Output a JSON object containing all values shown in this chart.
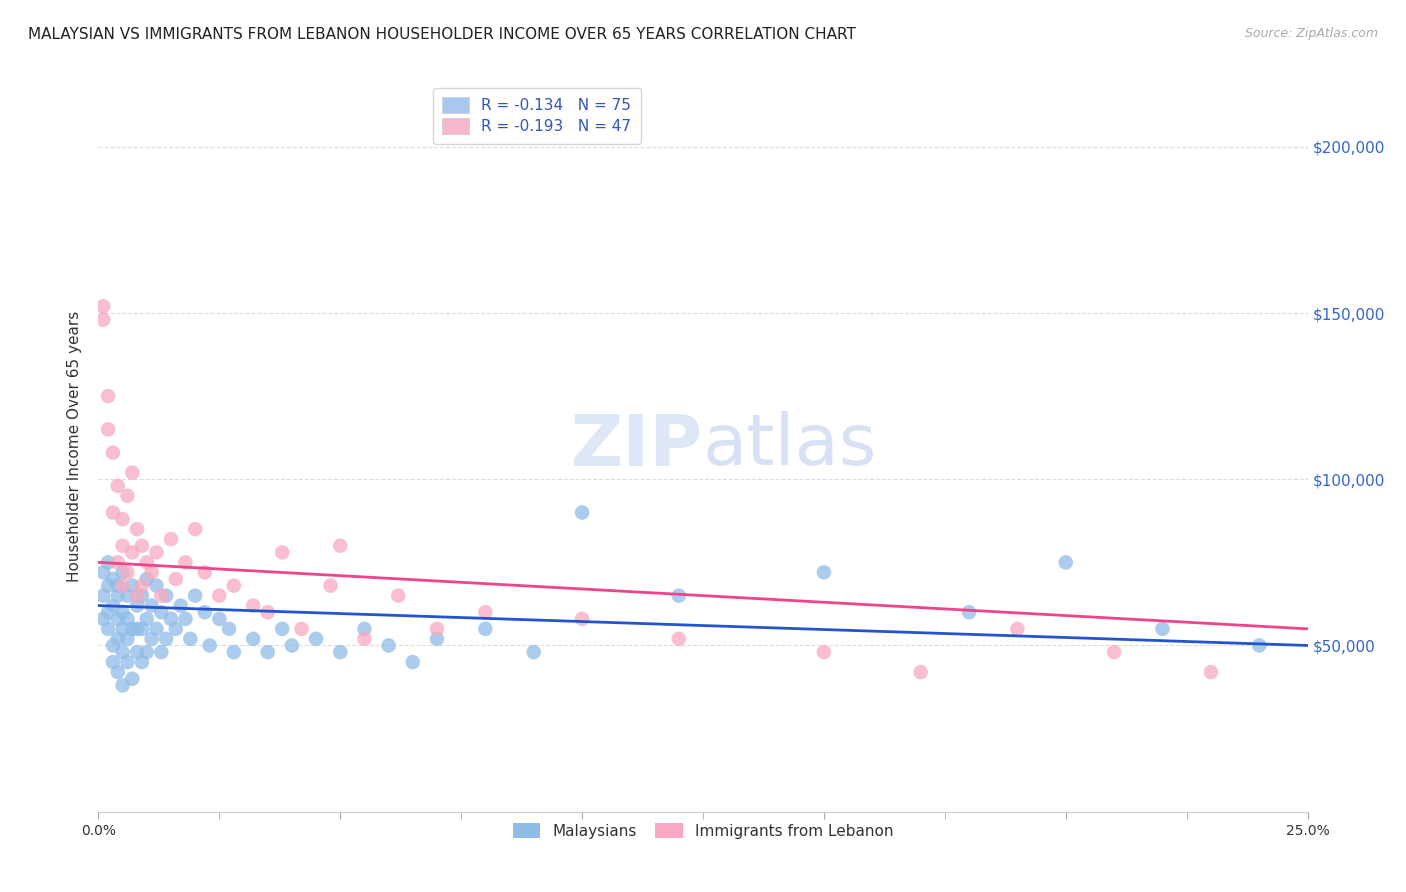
{
  "title": "MALAYSIAN VS IMMIGRANTS FROM LEBANON HOUSEHOLDER INCOME OVER 65 YEARS CORRELATION CHART",
  "source": "Source: ZipAtlas.com",
  "ylabel": "Householder Income Over 65 years",
  "legend_entries": [
    {
      "label": "R = -0.134   N = 75",
      "color": "#a8c8f0"
    },
    {
      "label": "R = -0.193   N = 47",
      "color": "#f8b8cc"
    }
  ],
  "legend_corr_color": "#3355bb",
  "ytick_labels": [
    "$50,000",
    "$100,000",
    "$150,000",
    "$200,000"
  ],
  "ytick_values": [
    50000,
    100000,
    150000,
    200000
  ],
  "ytick_color": "#3366cc",
  "watermark": "ZIPatlas",
  "blue_scatter_color": "#90bce8",
  "pink_scatter_color": "#f8a8c0",
  "blue_line_color": "#2255cc",
  "pink_line_color": "#ee4488",
  "background_color": "#ffffff",
  "grid_color": "#dddddd",
  "xlim": [
    0.0,
    0.25
  ],
  "ylim": [
    0,
    220000
  ],
  "malaysians_x": [
    0.001,
    0.001,
    0.001,
    0.002,
    0.002,
    0.002,
    0.002,
    0.003,
    0.003,
    0.003,
    0.003,
    0.004,
    0.004,
    0.004,
    0.004,
    0.004,
    0.005,
    0.005,
    0.005,
    0.005,
    0.005,
    0.006,
    0.006,
    0.006,
    0.006,
    0.007,
    0.007,
    0.007,
    0.008,
    0.008,
    0.008,
    0.009,
    0.009,
    0.009,
    0.01,
    0.01,
    0.01,
    0.011,
    0.011,
    0.012,
    0.012,
    0.013,
    0.013,
    0.014,
    0.014,
    0.015,
    0.016,
    0.017,
    0.018,
    0.019,
    0.02,
    0.022,
    0.023,
    0.025,
    0.027,
    0.028,
    0.032,
    0.035,
    0.038,
    0.04,
    0.045,
    0.05,
    0.055,
    0.06,
    0.065,
    0.07,
    0.08,
    0.09,
    0.1,
    0.12,
    0.15,
    0.18,
    0.2,
    0.22,
    0.24
  ],
  "malaysians_y": [
    65000,
    72000,
    58000,
    68000,
    60000,
    55000,
    75000,
    62000,
    70000,
    50000,
    45000,
    65000,
    58000,
    52000,
    68000,
    42000,
    72000,
    60000,
    55000,
    48000,
    38000,
    65000,
    58000,
    52000,
    45000,
    68000,
    55000,
    40000,
    62000,
    55000,
    48000,
    65000,
    55000,
    45000,
    70000,
    58000,
    48000,
    62000,
    52000,
    68000,
    55000,
    60000,
    48000,
    65000,
    52000,
    58000,
    55000,
    62000,
    58000,
    52000,
    65000,
    60000,
    50000,
    58000,
    55000,
    48000,
    52000,
    48000,
    55000,
    50000,
    52000,
    48000,
    55000,
    50000,
    45000,
    52000,
    55000,
    48000,
    90000,
    65000,
    72000,
    60000,
    75000,
    55000,
    50000
  ],
  "lebanon_x": [
    0.001,
    0.001,
    0.002,
    0.002,
    0.003,
    0.003,
    0.004,
    0.004,
    0.005,
    0.005,
    0.005,
    0.006,
    0.006,
    0.007,
    0.007,
    0.008,
    0.008,
    0.009,
    0.009,
    0.01,
    0.011,
    0.012,
    0.013,
    0.015,
    0.016,
    0.018,
    0.02,
    0.022,
    0.025,
    0.028,
    0.032,
    0.035,
    0.038,
    0.042,
    0.048,
    0.055,
    0.062,
    0.07,
    0.08,
    0.1,
    0.12,
    0.15,
    0.17,
    0.05,
    0.19,
    0.21,
    0.23
  ],
  "lebanon_y": [
    152000,
    148000,
    115000,
    125000,
    108000,
    90000,
    98000,
    75000,
    88000,
    80000,
    68000,
    95000,
    72000,
    102000,
    78000,
    85000,
    65000,
    80000,
    68000,
    75000,
    72000,
    78000,
    65000,
    82000,
    70000,
    75000,
    85000,
    72000,
    65000,
    68000,
    62000,
    60000,
    78000,
    55000,
    68000,
    52000,
    65000,
    55000,
    60000,
    58000,
    52000,
    48000,
    42000,
    80000,
    55000,
    48000,
    42000
  ]
}
